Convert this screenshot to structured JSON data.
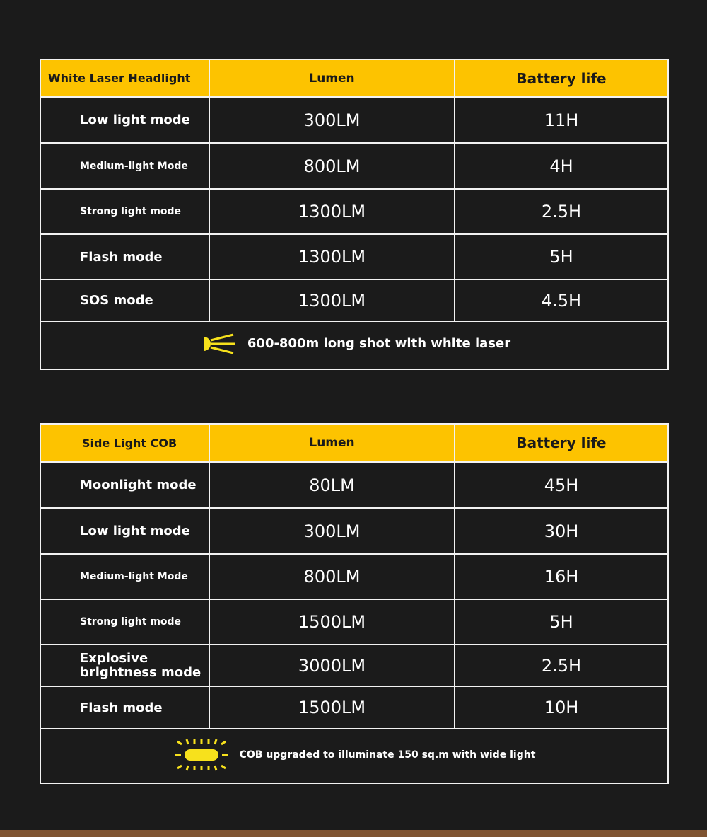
{
  "tables": [
    {
      "header": [
        "White Laser Headlight",
        "Lumen",
        "Battery life"
      ],
      "rows": [
        [
          "Low light mode",
          "300LM",
          "11H"
        ],
        [
          "Medium-light Mode",
          "800LM",
          "4H"
        ],
        [
          "Strong light mode",
          "1300LM",
          "2.5H"
        ],
        [
          "Flash mode",
          "1300LM",
          "5H"
        ],
        [
          "SOS mode",
          "1300LM",
          "4.5H"
        ]
      ],
      "footer": "600-800m long shot with white laser",
      "footer_icon": "laser-beam-icon"
    },
    {
      "header": [
        "Side Light COB",
        "Lumen",
        "Battery life"
      ],
      "rows": [
        [
          "Moonlight mode",
          "80LM",
          "45H"
        ],
        [
          "Low light mode",
          "300LM",
          "30H"
        ],
        [
          "Medium-light Mode",
          "800LM",
          "16H"
        ],
        [
          "Strong light mode",
          "1500LM",
          "5H"
        ],
        [
          "Explosive brightness mode",
          "3000LM",
          "2.5H"
        ],
        [
          "Flash mode",
          "1500LM",
          "10H"
        ]
      ],
      "footer": "COB upgraded to illuminate 150 sq.m with wide light",
      "footer_icon": "cob-light-icon"
    }
  ],
  "colors": {
    "header": "#fdc300",
    "background": "#1b1b1b",
    "icon": "#f7e11c"
  }
}
